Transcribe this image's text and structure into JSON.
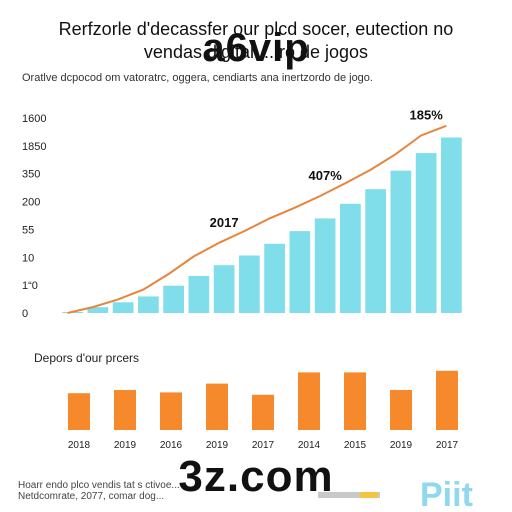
{
  "header": {
    "title_line1": "Rerfzorle d'decassfer our plcd socer, eutection no",
    "title_line2": "vendas digital ... ro de jogos",
    "subtitle": "Oratlve dcpocod om vatoratrc, oggera, cendiarts ana inertzordo de jogo."
  },
  "watermarks": {
    "top": "a6vip",
    "bottom": "3z.com"
  },
  "footer": {
    "line1": "Hoarr endo plco vendis tat s ctivoe...",
    "line2": "Netdcomrate, 2077, comar dog..."
  },
  "logo": {
    "text": "Piit"
  },
  "chart_data": [
    {
      "type": "bar",
      "title": "",
      "y_tick_labels": [
        "0",
        "1“0",
        "10",
        "55",
        "200",
        "350",
        "1850",
        "1600"
      ],
      "values": [
        1,
        6,
        11,
        17,
        28,
        38,
        49,
        59,
        71,
        84,
        97,
        112,
        127,
        146,
        164,
        180
      ],
      "bar_color": "#80deea",
      "trend_line": {
        "color": "#e8853b",
        "values": [
          0,
          6,
          14,
          24,
          40,
          58,
          72,
          84,
          97,
          108,
          120,
          133,
          147,
          163,
          182,
          192
        ]
      },
      "annotations": [
        {
          "text": "2017",
          "bar_index": 6
        },
        {
          "text": "407%",
          "bar_index": 10
        },
        {
          "text": "185%",
          "bar_index": 14
        }
      ],
      "ylim": [
        0,
        200
      ],
      "grid": false
    },
    {
      "type": "bar",
      "title": "Depors d'our prcers",
      "categories": [
        "2018",
        "2019",
        "2016",
        "2019",
        "2017",
        "2014",
        "2015",
        "2019",
        "2017"
      ],
      "values": [
        46,
        50,
        47,
        58,
        44,
        72,
        72,
        50,
        74
      ],
      "bar_color": "#f5892b",
      "ylim": [
        0,
        100
      ],
      "grid": false
    }
  ]
}
